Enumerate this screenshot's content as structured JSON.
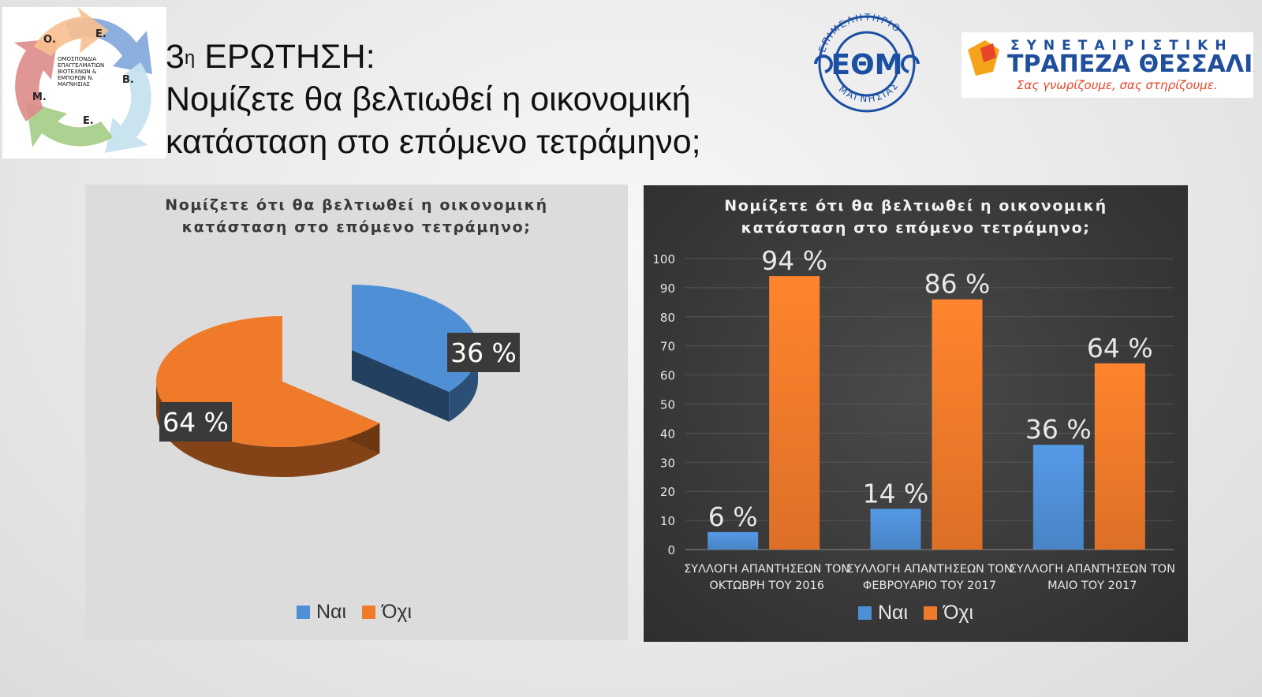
{
  "slide": {
    "title_prefix": "3",
    "title_sup": "η",
    "title_rest": " ΕΡΩΤΗΣΗ:",
    "title_line2": "Νομίζετε θα βελτιωθεί η οικονομική",
    "title_line3": "κατάσταση στο επόμενο τετράμηνο;"
  },
  "logos": {
    "omespimm": {
      "letters": [
        "Ο.",
        "Ε.",
        "Β.",
        "Ε.",
        "Μ."
      ],
      "text_lines": [
        "ΟΜΟΣΠΟΝΔΙΑ",
        "ΕΠΑΓΓΕΛΜΑΤΙΩΝ",
        "ΒΙΟΤΕΧΝΩΝ &",
        "ΕΜΠΟΡΩΝ Ν.",
        "ΜΑΓΝΗΣΙΑΣ"
      ]
    },
    "epimelitirio": {
      "top_arc": "ΕΠΙΜΕΛΗΤΗΡΙΟ",
      "center": "ΕΘΜ",
      "bottom_arc": "ΜΑΓΝΗΣΙΑΣ"
    },
    "bank": {
      "line1": "ΣΥΝΕΤΑΙΡΙΣΤΙΚΗ",
      "line2": "ΤΡΑΠΕΖΑ ΘΕΣΣΑΛΙΑΣ",
      "slogan": "Σας γνωρίζουμε, σας στηρίζουμε."
    }
  },
  "colors": {
    "nai": "#4f8fd6",
    "oxi": "#ef7a2a"
  },
  "chart_data": [
    {
      "type": "pie",
      "title": "Νομίζετε ότι θα βελτιωθεί η οικονομική κατάσταση στο επόμενο τετράμηνο;",
      "categories": [
        "Ναι",
        "Όχι"
      ],
      "values": [
        36,
        64
      ],
      "data_labels": [
        "36 %",
        "64 %"
      ],
      "legend": "bottom"
    },
    {
      "type": "bar",
      "title": "Νομίζετε ότι θα βελτιωθεί η οικονομική κατάσταση στο επόμενο τετράμηνο;",
      "categories": [
        [
          "ΣΥΛΛΟΓΗ ΑΠΑΝΤΗΣΕΩΝ ΤΟΝ",
          "ΟΚΤΩΒΡΗ ΤΟΥ 2016"
        ],
        [
          "ΣΥΛΛΟΓΗ ΑΠΑΝΤΗΣΕΩΝ ΤΟΝ",
          "ΦΕΒΡΟΥΑΡΙΟ ΤΟΥ 2017"
        ],
        [
          "ΣΥΛΛΟΓΗ ΑΠΑΝΤΗΣΕΩΝ ΤΟΝ",
          "ΜΑΙΟ ΤΟΥ 2017"
        ]
      ],
      "series": [
        {
          "name": "Ναι",
          "values": [
            6,
            14,
            36
          ],
          "labels": [
            "6 %",
            "14 %",
            "36 %"
          ]
        },
        {
          "name": "Όχι",
          "values": [
            94,
            86,
            64
          ],
          "labels": [
            "94 %",
            "86 %",
            "64 %"
          ]
        }
      ],
      "ylim": [
        0,
        100
      ],
      "yticks": [
        0,
        10,
        20,
        30,
        40,
        50,
        60,
        70,
        80,
        90,
        100
      ],
      "grid": true,
      "legend": "bottom"
    }
  ]
}
